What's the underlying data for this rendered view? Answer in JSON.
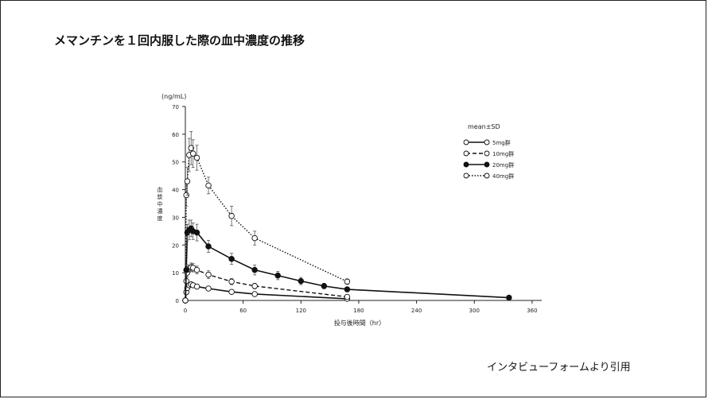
{
  "slide": {
    "title": "メマンチンを１回内服した際の血中濃度の推移",
    "source_note": "インタビューフォームより引用"
  },
  "chart_data": {
    "type": "line",
    "title": "",
    "xlabel": "投与後時間（hr）",
    "ylabel": "血漿中濃度",
    "yunit": "(ng/mL)",
    "xlim": [
      0,
      370
    ],
    "ylim": [
      0,
      70
    ],
    "xticks": [
      0,
      60,
      120,
      180,
      240,
      300,
      360
    ],
    "yticks": [
      0,
      10,
      20,
      30,
      40,
      50,
      60,
      70
    ],
    "legend_title": "mean±SD",
    "legend_position": "top-right",
    "series": [
      {
        "name": "5mg群",
        "style": "solid",
        "marker": "open",
        "points": [
          [
            0,
            0
          ],
          [
            1,
            3
          ],
          [
            2,
            4.5
          ],
          [
            4,
            5.5
          ],
          [
            6,
            5.8
          ],
          [
            8,
            5.5
          ],
          [
            12,
            5
          ],
          [
            24,
            4.3
          ],
          [
            48,
            3.1
          ],
          [
            72,
            2.3
          ],
          [
            168,
            0.6
          ]
        ],
        "errors": [
          0,
          0.6,
          0.8,
          0.8,
          0.8,
          0.8,
          0.7,
          0.6,
          0.5,
          0.4,
          0.2
        ]
      },
      {
        "name": "10mg群",
        "style": "dashed",
        "marker": "open",
        "points": [
          [
            0,
            0
          ],
          [
            1,
            7
          ],
          [
            2,
            10
          ],
          [
            4,
            11.5
          ],
          [
            6,
            12
          ],
          [
            8,
            11.8
          ],
          [
            12,
            11
          ],
          [
            24,
            9.3
          ],
          [
            48,
            6.8
          ],
          [
            72,
            5.2
          ],
          [
            168,
            1.3
          ]
        ],
        "errors": [
          0,
          1.5,
          1.5,
          1.3,
          1.5,
          1.5,
          1.4,
          1.4,
          1.1,
          1.0,
          0.4
        ]
      },
      {
        "name": "20mg群",
        "style": "solid",
        "marker": "filled",
        "points": [
          [
            0,
            0
          ],
          [
            1,
            11
          ],
          [
            2,
            24.5
          ],
          [
            4,
            25.5
          ],
          [
            6,
            26
          ],
          [
            8,
            25
          ],
          [
            12,
            24.5
          ],
          [
            24,
            19.5
          ],
          [
            48,
            15
          ],
          [
            72,
            11
          ],
          [
            96,
            9
          ],
          [
            120,
            7
          ],
          [
            144,
            5.2
          ],
          [
            168,
            4
          ],
          [
            336,
            1
          ]
        ],
        "errors": [
          0,
          2,
          3,
          3.5,
          3,
          3,
          3,
          2.2,
          2,
          1.8,
          1.5,
          1.3,
          1,
          0.8,
          0.3
        ]
      },
      {
        "name": "40mg群",
        "style": "dotted",
        "marker": "open",
        "points": [
          [
            0,
            0
          ],
          [
            1,
            38
          ],
          [
            2,
            43
          ],
          [
            4,
            52.5
          ],
          [
            6,
            55
          ],
          [
            8,
            53
          ],
          [
            12,
            51.5
          ],
          [
            24,
            41.5
          ],
          [
            48,
            30.5
          ],
          [
            72,
            22.5
          ],
          [
            168,
            6.8
          ]
        ],
        "errors": [
          0,
          4,
          5,
          6,
          6,
          5,
          4.5,
          3,
          3.5,
          2.5,
          1
        ]
      }
    ]
  }
}
